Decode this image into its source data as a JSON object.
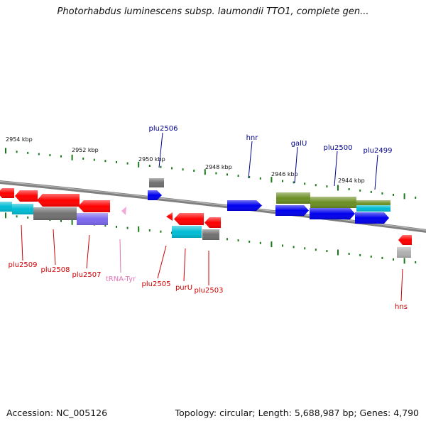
{
  "title": "Photorhabdus luminescens subsp. laumondii TTO1, complete gen...",
  "footer": {
    "accession": "Accession: NC_005126",
    "info": "Topology: circular; Length: 5,688,987 bp; Genes: 4,790"
  },
  "colors": {
    "forward_label": "#00008b",
    "reverse_label": "#cc0000",
    "trna_label": "#e377b8",
    "backbone": "#808080",
    "tick": "#1a7a1a"
  },
  "kbp_labels": [
    "2954 kbp",
    "2952 kbp",
    "2950 kbp",
    "2948 kbp",
    "2946 kbp",
    "2944 kbp"
  ],
  "genes": [
    {
      "name": "plu2506",
      "strand": "forward",
      "icon": "gene-arrow-icon"
    },
    {
      "name": "hnr",
      "strand": "forward",
      "icon": "gene-arrow-icon"
    },
    {
      "name": "galU",
      "strand": "forward",
      "icon": "gene-arrow-icon"
    },
    {
      "name": "plu2500",
      "strand": "forward",
      "icon": "gene-arrow-icon"
    },
    {
      "name": "plu2499",
      "strand": "forward",
      "icon": "gene-arrow-icon"
    },
    {
      "name": "plu2509",
      "strand": "reverse",
      "icon": "gene-arrow-icon"
    },
    {
      "name": "plu2508",
      "strand": "reverse",
      "icon": "gene-arrow-icon"
    },
    {
      "name": "plu2507",
      "strand": "reverse",
      "icon": "gene-arrow-icon"
    },
    {
      "name": "tRNA-Tyr",
      "strand": "reverse",
      "icon": "trna-marker-icon"
    },
    {
      "name": "plu2505",
      "strand": "reverse",
      "icon": "gene-arrow-icon"
    },
    {
      "name": "purU",
      "strand": "reverse",
      "icon": "gene-arrow-icon"
    },
    {
      "name": "plu2503",
      "strand": "reverse",
      "icon": "gene-arrow-icon"
    },
    {
      "name": "hns",
      "strand": "reverse",
      "icon": "gene-arrow-icon"
    }
  ]
}
